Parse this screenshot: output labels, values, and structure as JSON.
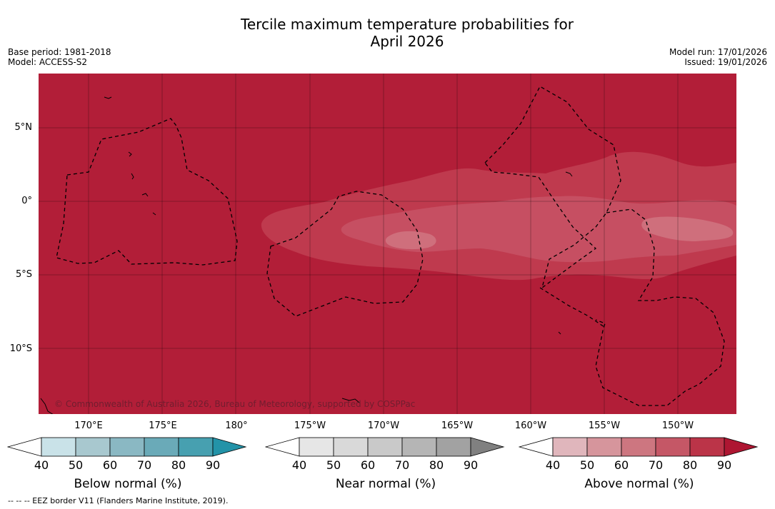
{
  "title_line1": "Tercile maximum temperature probabilities for",
  "title_line2": "April 2026",
  "base_period": "Base period: 1981-2018",
  "model": "Model: ACCESS-S2",
  "model_run": "Model run: 17/01/2026",
  "issued": "Issued: 19/01/2026",
  "copyright": "© Commonwealth of Australia 2026, Bureau of Meteorology, supported by COSPPac",
  "footnote": "--  --  -- EEZ border V11 (Flanders Marine Institute, 2019).",
  "map": {
    "background_color": "#b21e38",
    "lat_labels": [
      "5°N",
      "0°",
      "5°S",
      "10°S"
    ],
    "lon_labels": [
      "170°E",
      "175°E",
      "180°",
      "175°W",
      "170°W",
      "165°W",
      "160°W",
      "155°W",
      "150°W"
    ],
    "region_colors": [
      "#bf3a4e",
      "#c64f62",
      "#cf6f7c"
    ]
  },
  "legends": [
    {
      "title": "Below normal (%)",
      "ticks": [
        "40",
        "50",
        "60",
        "70",
        "80",
        "90"
      ],
      "colors": [
        "#ffffff",
        "#c9e2e8",
        "#a8c8cf",
        "#8ab8c3",
        "#6aaab8",
        "#47a0b0",
        "#2393a8"
      ]
    },
    {
      "title": "Near normal (%)",
      "ticks": [
        "40",
        "50",
        "60",
        "70",
        "80",
        "90"
      ],
      "colors": [
        "#ffffff",
        "#e6e6e6",
        "#d9d9d9",
        "#c9c9c9",
        "#b5b5b5",
        "#a2a2a2",
        "#808080"
      ]
    },
    {
      "title": "Above normal (%)",
      "ticks": [
        "40",
        "50",
        "60",
        "70",
        "80",
        "90"
      ],
      "colors": [
        "#ffffff",
        "#e0b6bc",
        "#d6959c",
        "#cd7680",
        "#c55766",
        "#bb3448",
        "#ae1632"
      ]
    }
  ]
}
